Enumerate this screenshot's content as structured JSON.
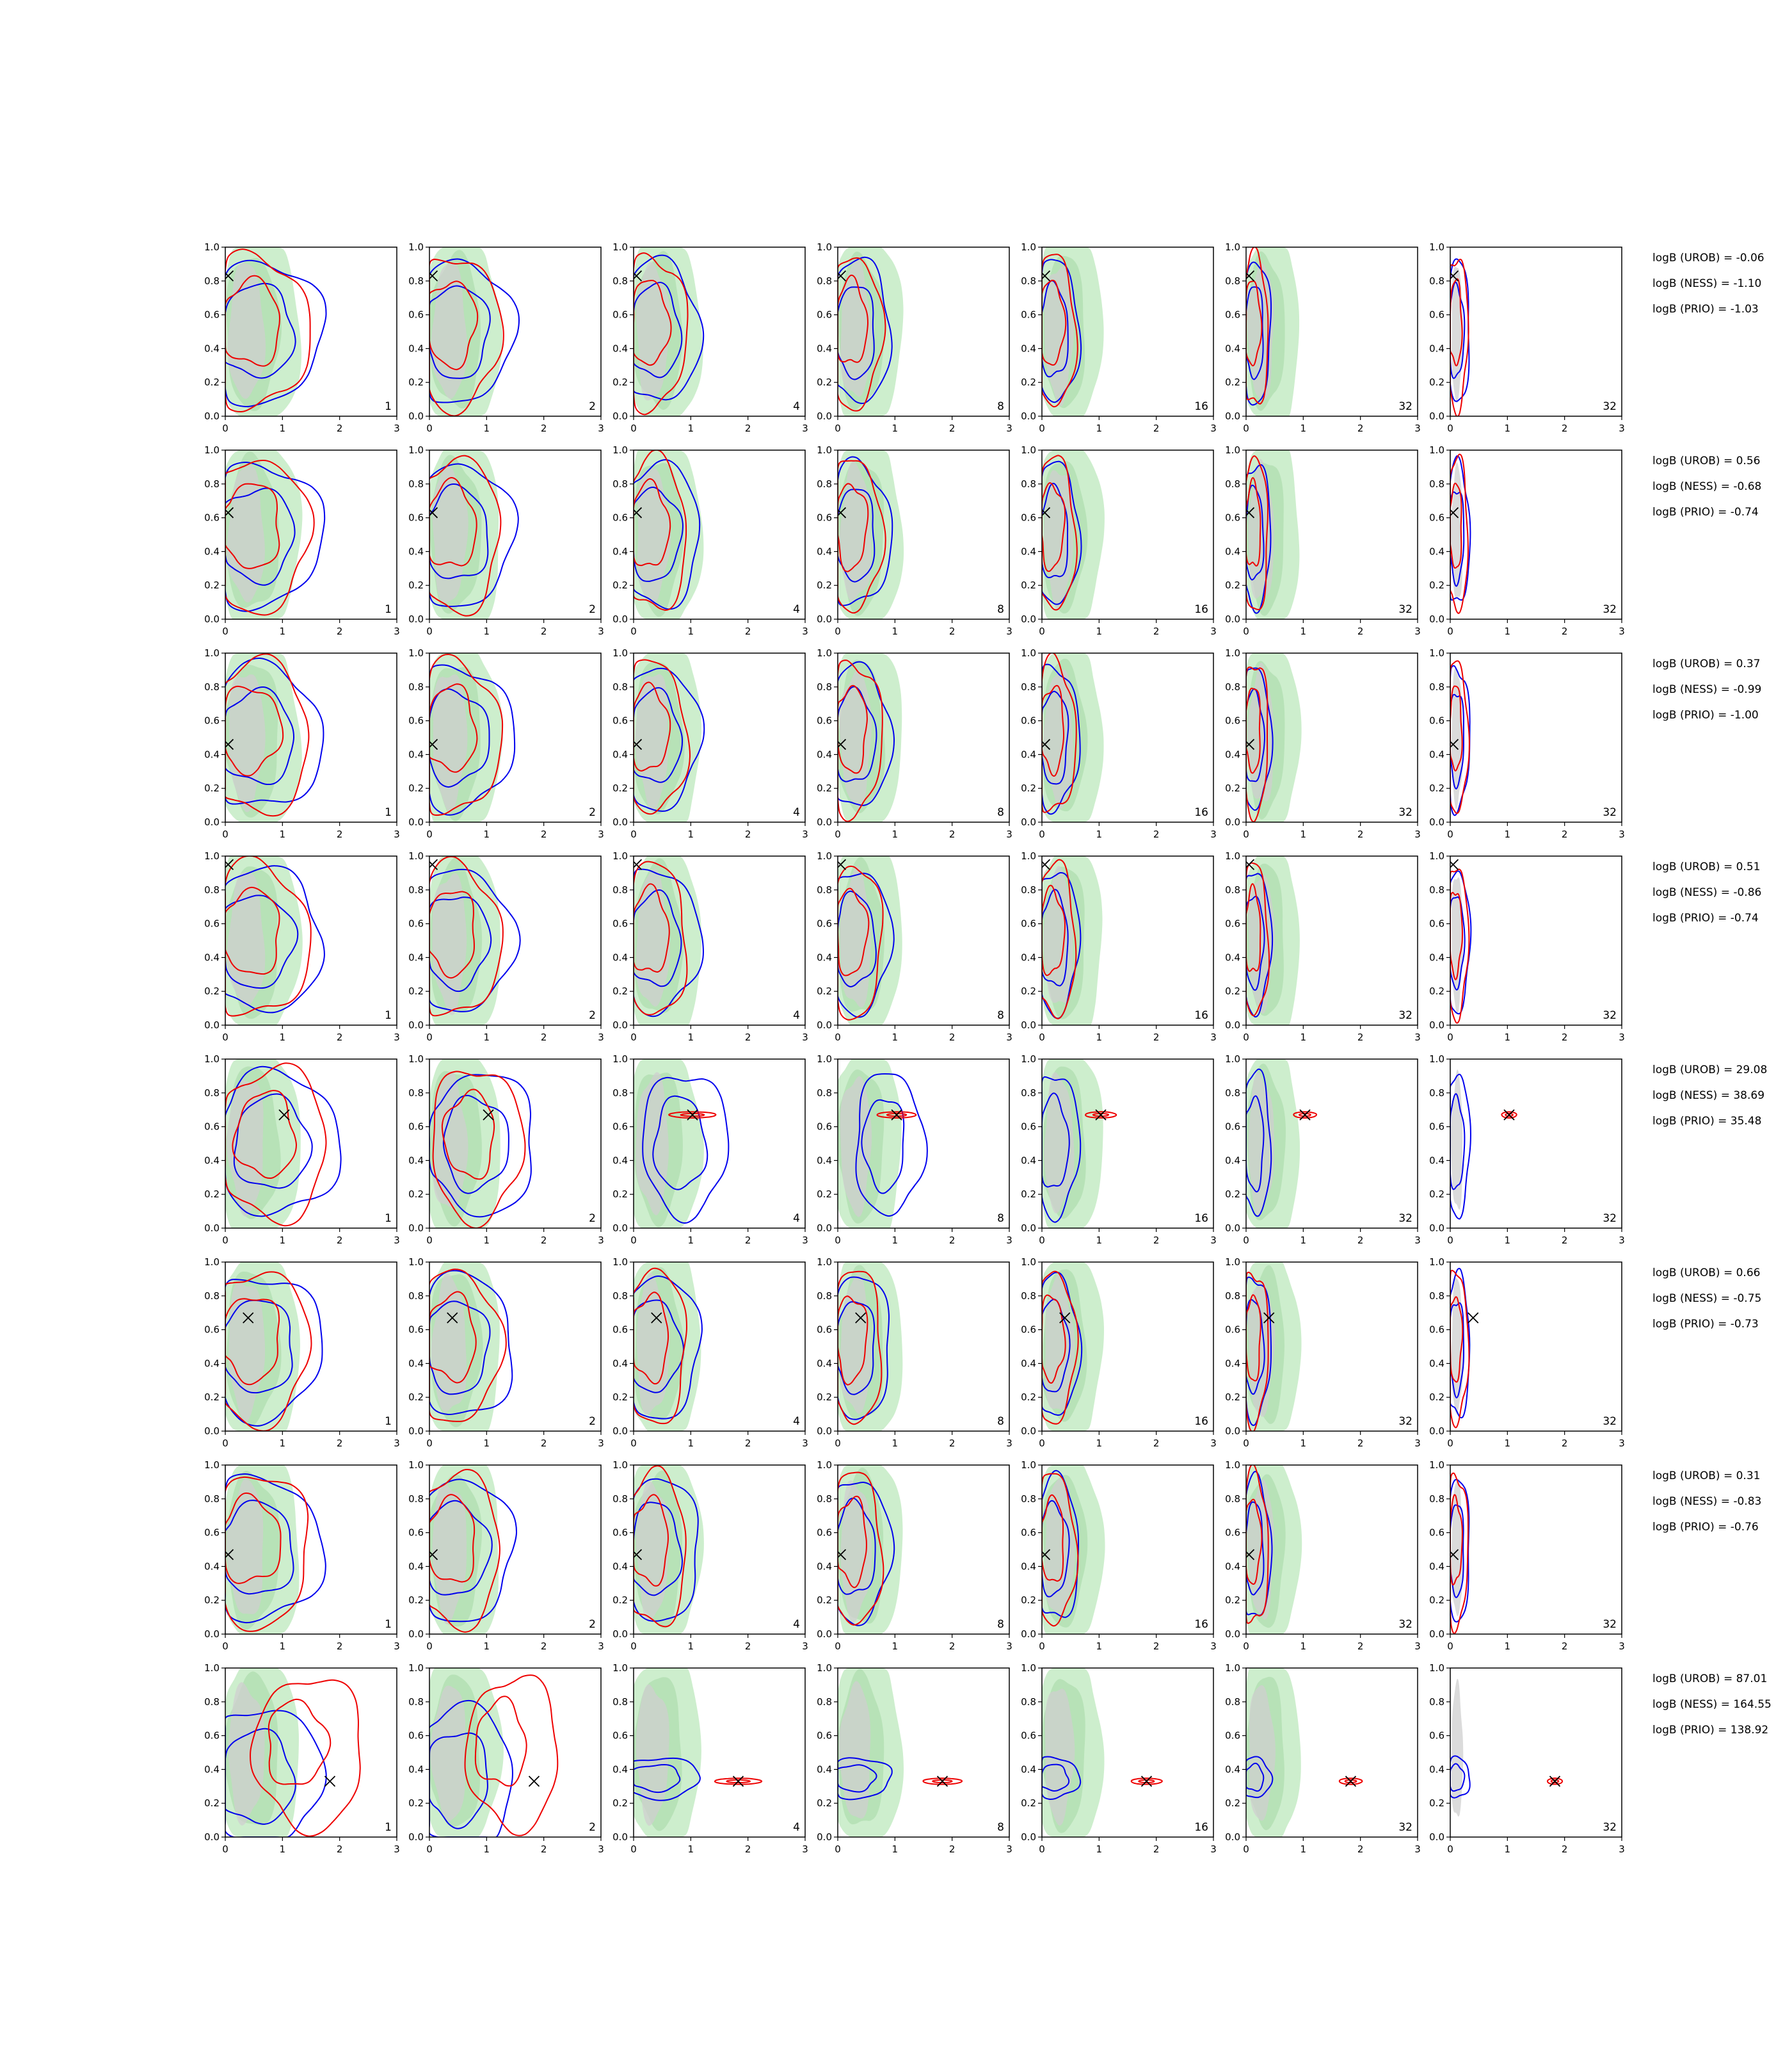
{
  "figure": {
    "type": "contour-grid",
    "colors": {
      "blue": "#0000ee",
      "red": "#ee0000",
      "green_outer": "#cdeecd",
      "green_inner": "#b7e2b7",
      "gray": "#cfcfcf",
      "marker": "#000000"
    }
  },
  "chart_data": {
    "type": "contour-grid",
    "xlim": [
      0,
      3
    ],
    "ylim": [
      0,
      1
    ],
    "xticks": [
      "0",
      "1",
      "2",
      "3"
    ],
    "yticks": [
      "0.0",
      "0.2",
      "0.4",
      "0.6",
      "0.8",
      "1.0"
    ],
    "column_labels": [
      "1",
      "2",
      "4",
      "8",
      "16",
      "32",
      "32"
    ],
    "rows": [
      {
        "truth": [
          0.05,
          0.83
        ],
        "logB": {
          "UROB": "logB (UROB) = -0.06",
          "NESS": "logB (NESS) = -1.10",
          "PRIO": "logB (PRIO) = -1.03"
        }
      },
      {
        "truth": [
          0.05,
          0.63
        ],
        "logB": {
          "UROB": "logB (UROB) = 0.56",
          "NESS": "logB (NESS) = -0.68",
          "PRIO": "logB (PRIO) = -0.74"
        }
      },
      {
        "truth": [
          0.05,
          0.46
        ],
        "logB": {
          "UROB": "logB (UROB) = 0.37",
          "NESS": "logB (NESS) = -0.99",
          "PRIO": "logB (PRIO) = -1.00"
        }
      },
      {
        "truth": [
          0.05,
          0.95
        ],
        "logB": {
          "UROB": "logB (UROB) = 0.51",
          "NESS": "logB (NESS) = -0.86",
          "PRIO": "logB (PRIO) = -0.74"
        }
      },
      {
        "truth": [
          1.03,
          0.67
        ],
        "logB": {
          "UROB": "logB (UROB) = 29.08",
          "NESS": "logB (NESS) = 38.69",
          "PRIO": "logB (PRIO) = 35.48"
        }
      },
      {
        "truth": [
          0.4,
          0.67
        ],
        "logB": {
          "UROB": "logB (UROB) = 0.66",
          "NESS": "logB (NESS) = -0.75",
          "PRIO": "logB (PRIO) = -0.73"
        }
      },
      {
        "truth": [
          0.05,
          0.47
        ],
        "logB": {
          "UROB": "logB (UROB) = 0.31",
          "NESS": "logB (NESS) = -0.83",
          "PRIO": "logB (PRIO) = -0.76"
        }
      },
      {
        "truth": [
          1.83,
          0.33
        ],
        "logB": {
          "UROB": "logB (UROB) = 87.01",
          "NESS": "logB (NESS) = 164.55",
          "PRIO": "logB (PRIO) = 138.92"
        }
      }
    ]
  }
}
